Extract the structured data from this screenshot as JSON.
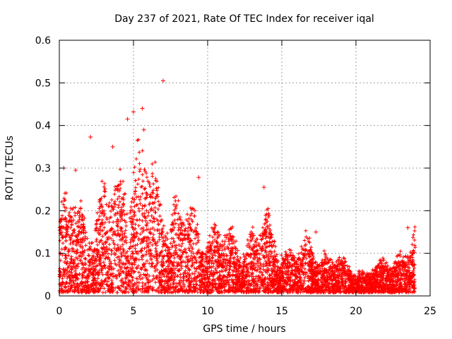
{
  "chart_data": {
    "type": "scatter",
    "title": "Day 237 of 2021, Rate Of TEC Index for receiver iqal",
    "xlabel": "GPS time / hours",
    "ylabel": "ROTI / TECUs",
    "xlim": [
      0,
      25
    ],
    "ylim": [
      0,
      0.6
    ],
    "xticks": [
      0,
      5,
      10,
      15,
      20,
      25
    ],
    "yticks": [
      0,
      0.1,
      0.2,
      0.3,
      0.4,
      0.5,
      0.6
    ],
    "xtick_labels": [
      "0",
      "5",
      "10",
      "15",
      "20",
      "25"
    ],
    "ytick_labels": [
      "0",
      "0.1",
      "0.2",
      "0.3",
      "0.4",
      "0.5",
      "0.6"
    ],
    "grid": true,
    "marker": "+",
    "series": [
      {
        "name": "ROTI",
        "color": "#ff0000",
        "x_range": [
          0,
          24
        ],
        "envelope": {
          "hours": [
            0,
            1,
            2,
            3,
            4,
            5,
            6,
            7,
            8,
            9,
            10,
            11,
            12,
            13,
            14,
            15,
            16,
            17,
            18,
            19,
            20,
            21,
            22,
            23,
            24
          ],
          "typical_max": [
            0.18,
            0.22,
            0.18,
            0.22,
            0.29,
            0.33,
            0.3,
            0.24,
            0.2,
            0.18,
            0.16,
            0.14,
            0.13,
            0.15,
            0.16,
            0.12,
            0.1,
            0.12,
            0.1,
            0.07,
            0.06,
            0.06,
            0.07,
            0.1,
            0.14
          ]
        },
        "notable_points": [
          {
            "x": 7.0,
            "y": 0.505
          },
          {
            "x": 5.6,
            "y": 0.44
          },
          {
            "x": 5.0,
            "y": 0.432
          },
          {
            "x": 4.6,
            "y": 0.415
          },
          {
            "x": 5.7,
            "y": 0.39
          },
          {
            "x": 2.1,
            "y": 0.373
          },
          {
            "x": 3.6,
            "y": 0.35
          },
          {
            "x": 0.3,
            "y": 0.3
          },
          {
            "x": 1.1,
            "y": 0.295
          },
          {
            "x": 9.4,
            "y": 0.278
          },
          {
            "x": 13.8,
            "y": 0.255
          },
          {
            "x": 17.3,
            "y": 0.15
          },
          {
            "x": 23.5,
            "y": 0.16
          }
        ]
      }
    ]
  }
}
